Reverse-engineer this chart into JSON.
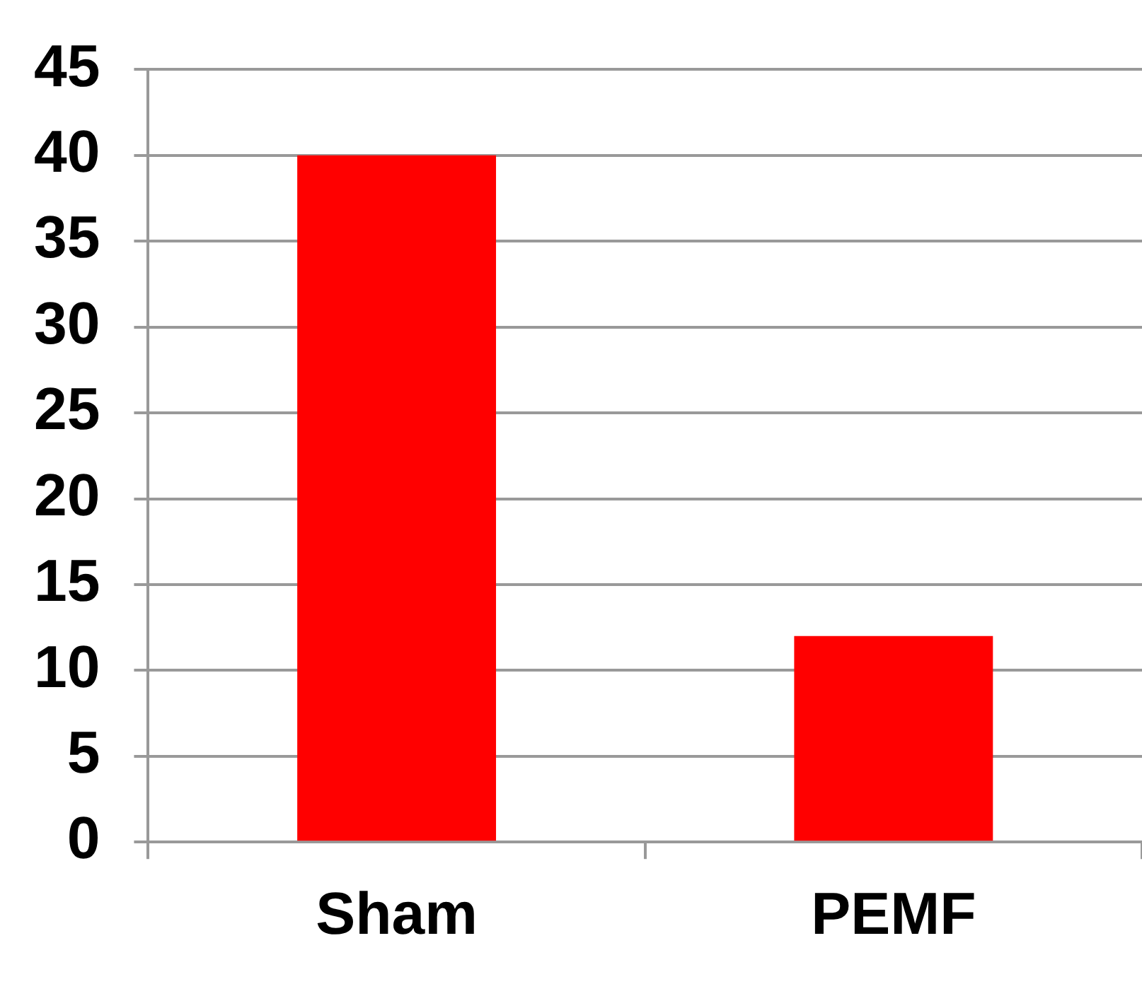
{
  "chart_data": {
    "type": "bar",
    "categories": [
      "Sham",
      "PEMF"
    ],
    "values": [
      40,
      12
    ],
    "color": "#ff0000",
    "ylim": [
      0,
      45
    ],
    "yticks": [
      0,
      5,
      10,
      15,
      20,
      25,
      30,
      35,
      40,
      45
    ],
    "grid": "y",
    "legend": false
  }
}
